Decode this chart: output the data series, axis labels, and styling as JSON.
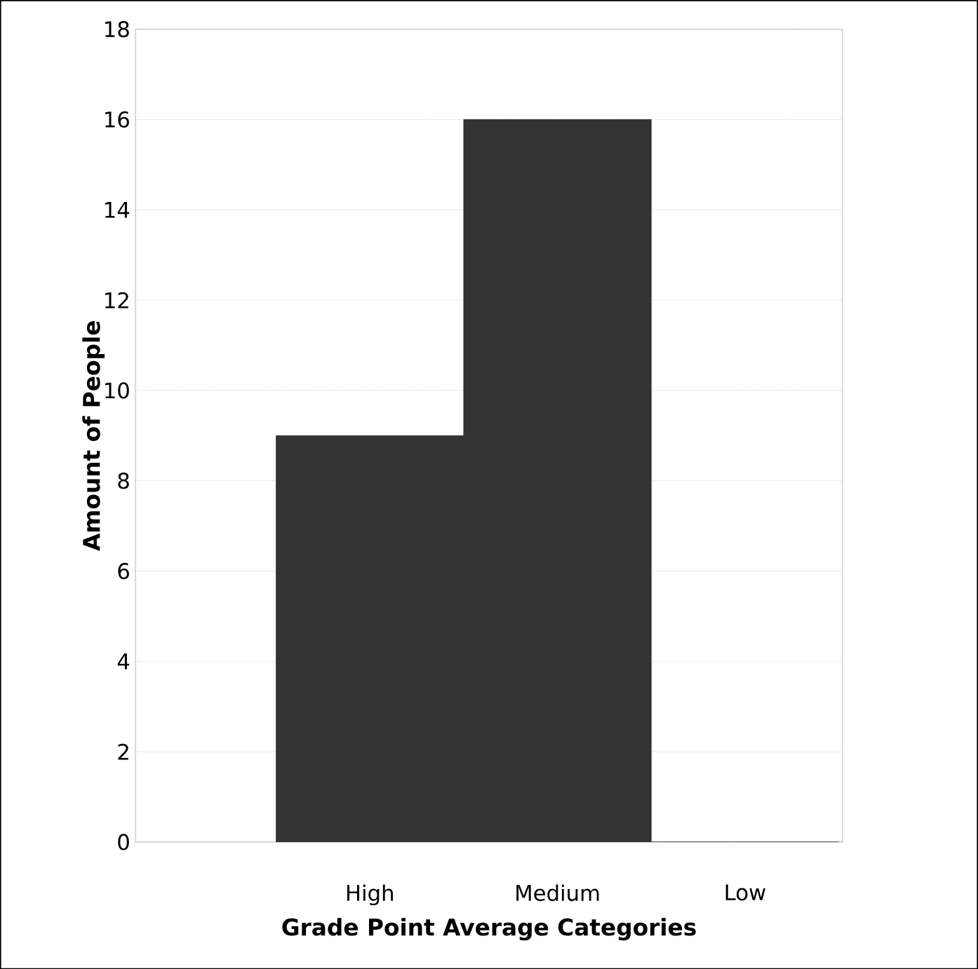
{
  "chart_data": {
    "type": "bar",
    "xlabel": "Grade Point Average Categories",
    "ylabel": "Amount of People",
    "categories": [
      "High",
      "Medium",
      "Low"
    ],
    "values": [
      9,
      16,
      0
    ],
    "color": "#333333",
    "ylim": [
      0,
      18
    ],
    "yticks": [
      0,
      2,
      4,
      6,
      8,
      10,
      12,
      14,
      16,
      18
    ],
    "grid": "y"
  }
}
